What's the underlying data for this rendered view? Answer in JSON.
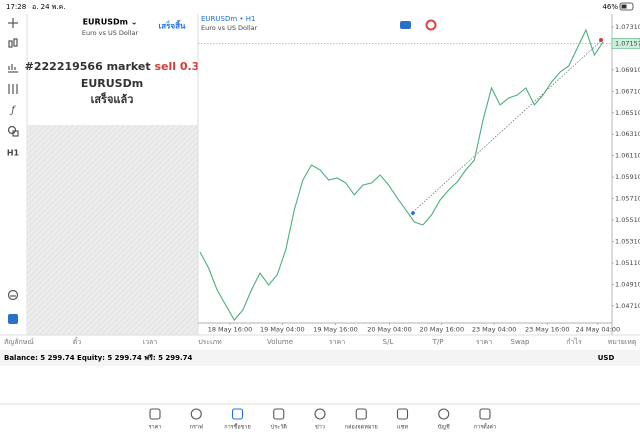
{
  "status_bar": {
    "time": "17:28",
    "date": "อ. 24 พ.ค.",
    "battery": "46%"
  },
  "toolbar": {
    "timeframe": "H1"
  },
  "order_panel": {
    "symbol": "EURUSDm ⌄",
    "description": "Euro vs US Dollar",
    "done_button": "เสร็จสิ้น",
    "order": "#222219566 market",
    "side": "sell 0.3",
    "order_symbol": "EURUSDm",
    "status": "เสร็จแล้ว"
  },
  "chart_data": {
    "type": "line",
    "title": "EURUSDm • H1",
    "subtitle": "Euro vs US Dollar",
    "color": "#4caf7d",
    "values": [
      1.05212,
      1.05063,
      1.04858,
      1.04718,
      1.04578,
      1.04671,
      1.04858,
      1.05016,
      1.04904,
      1.04998,
      1.05231,
      1.05604,
      1.05883,
      1.06023,
      1.05977,
      1.05883,
      1.05902,
      1.05855,
      1.05744,
      1.05837,
      1.05855,
      1.0593,
      1.05837,
      1.05716,
      1.05604,
      1.05492,
      1.05464,
      1.05557,
      1.05697,
      1.0579,
      1.05865,
      1.05977,
      1.0607,
      1.06443,
      1.06741,
      1.06583,
      1.06648,
      1.06676,
      1.06741,
      1.06583,
      1.06676,
      1.06797,
      1.0689,
      1.06946,
      1.07114,
      1.07282,
      1.07049,
      1.0717
    ],
    "xlim": [
      0,
      47
    ],
    "xticks": [
      {
        "value": 3.5,
        "label": "18 May 16:00"
      },
      {
        "value": 9.6,
        "label": "19 May 04:00"
      },
      {
        "value": 15.8,
        "label": "19 May 16:00"
      },
      {
        "value": 22.1,
        "label": "20 May 04:00"
      },
      {
        "value": 28.2,
        "label": "20 May 16:00"
      },
      {
        "value": 34.3,
        "label": "23 May 04:00"
      },
      {
        "value": 40.5,
        "label": "23 May 16:00"
      },
      {
        "value": 46.4,
        "label": "24 May 04:00"
      }
    ],
    "ylim": [
      1.04438,
      1.07431
    ],
    "yticks": [
      {
        "value": 1.0731,
        "label": "1.07310"
      },
      {
        "value": 1.0691,
        "label": "1.06910"
      },
      {
        "value": 1.0671,
        "label": "1.06710"
      },
      {
        "value": 1.0651,
        "label": "1.06510"
      },
      {
        "value": 1.0631,
        "label": "1.06310"
      },
      {
        "value": 1.0611,
        "label": "1.06110"
      },
      {
        "value": 1.0591,
        "label": "1.05910"
      },
      {
        "value": 1.0571,
        "label": "1.05710"
      },
      {
        "value": 1.0551,
        "label": "1.05510"
      },
      {
        "value": 1.0531,
        "label": "1.05310"
      },
      {
        "value": 1.0511,
        "label": "1.05110"
      },
      {
        "value": 1.0491,
        "label": "1.04910"
      },
      {
        "value": 1.0471,
        "label": "1.04710"
      }
    ],
    "current_price": 1.07157
  },
  "table": {
    "columns": [
      "สัญลักษณ์",
      "ตั๋ว",
      "เวลา",
      "ประเภท",
      "Volume",
      "ราคา",
      "S/L",
      "T/P",
      "ราคา",
      "Swap",
      "กำไร",
      "หมายเหตุ"
    ]
  },
  "account": {
    "summary": "Balance: 5 299.74 Equity: 5 299.74 ฟรี: 5 299.74",
    "currency": "USD"
  },
  "tabs": [
    "ราคา",
    "กราฟ",
    "การซื้อขาย",
    "ประวัติ",
    "ข่าว",
    "กล่องจดหมาย",
    "แชท",
    "บัญชี",
    "การตั้งค่า"
  ],
  "active_tab": 2
}
